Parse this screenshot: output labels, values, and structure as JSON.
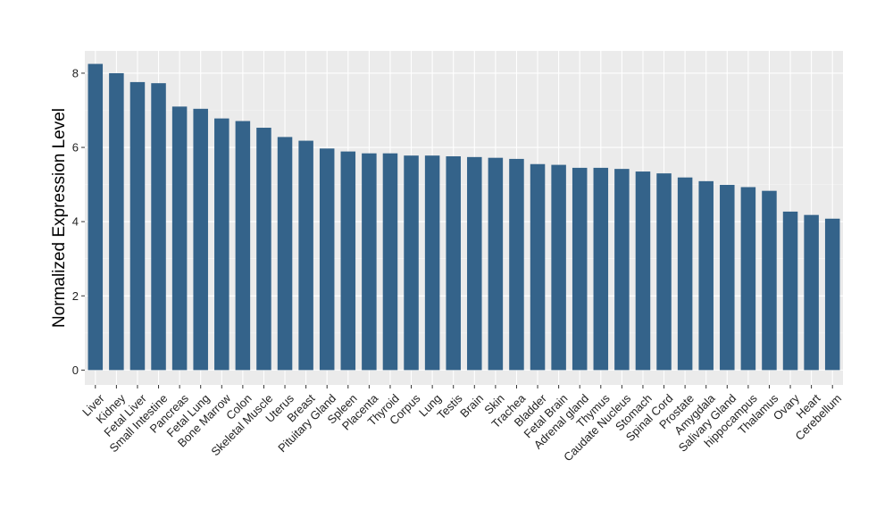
{
  "chart_data": {
    "type": "bar",
    "title": "",
    "xlabel": "",
    "ylabel": "Normalized Expression Level",
    "ylim": [
      -0.4,
      8.6
    ],
    "yticks": [
      0,
      2,
      4,
      6,
      8
    ],
    "grid": true,
    "legend": "none",
    "colors": {
      "bar": "#34638A",
      "panel": "#EBEBEB",
      "grid_major": "#FFFFFF",
      "grid_minor": "#F5F5F5"
    },
    "categories": [
      "Liver",
      "Kidney",
      "Fetal Liver",
      "Small Intestine",
      "Pancreas",
      "Fetal Lung",
      "Bone Marrow",
      "Colon",
      "Skeletal Muscle",
      "Uterus",
      "Breast",
      "Pituitary Gland",
      "Spleen",
      "Placenta",
      "Thyroid",
      "Corpus",
      "Lung",
      "Testis",
      "Brain",
      "Skin",
      "Trachea",
      "Bladder",
      "Fetal Brain",
      "Adrenal gland",
      "Thymus",
      "Caudate Nucleus",
      "Stomach",
      "Spinal Cord",
      "Prostate",
      "Amygdala",
      "Salivary Gland",
      "hippocampus",
      "Thalamus",
      "Ovary",
      "Heart",
      "Cerebellum"
    ],
    "values": [
      8.25,
      8.0,
      7.76,
      7.73,
      7.1,
      7.04,
      6.78,
      6.71,
      6.53,
      6.28,
      6.18,
      5.97,
      5.89,
      5.84,
      5.84,
      5.78,
      5.78,
      5.76,
      5.74,
      5.72,
      5.69,
      5.55,
      5.53,
      5.45,
      5.45,
      5.42,
      5.35,
      5.3,
      5.19,
      5.09,
      4.99,
      4.93,
      4.83,
      4.27,
      4.18,
      4.08
    ]
  }
}
